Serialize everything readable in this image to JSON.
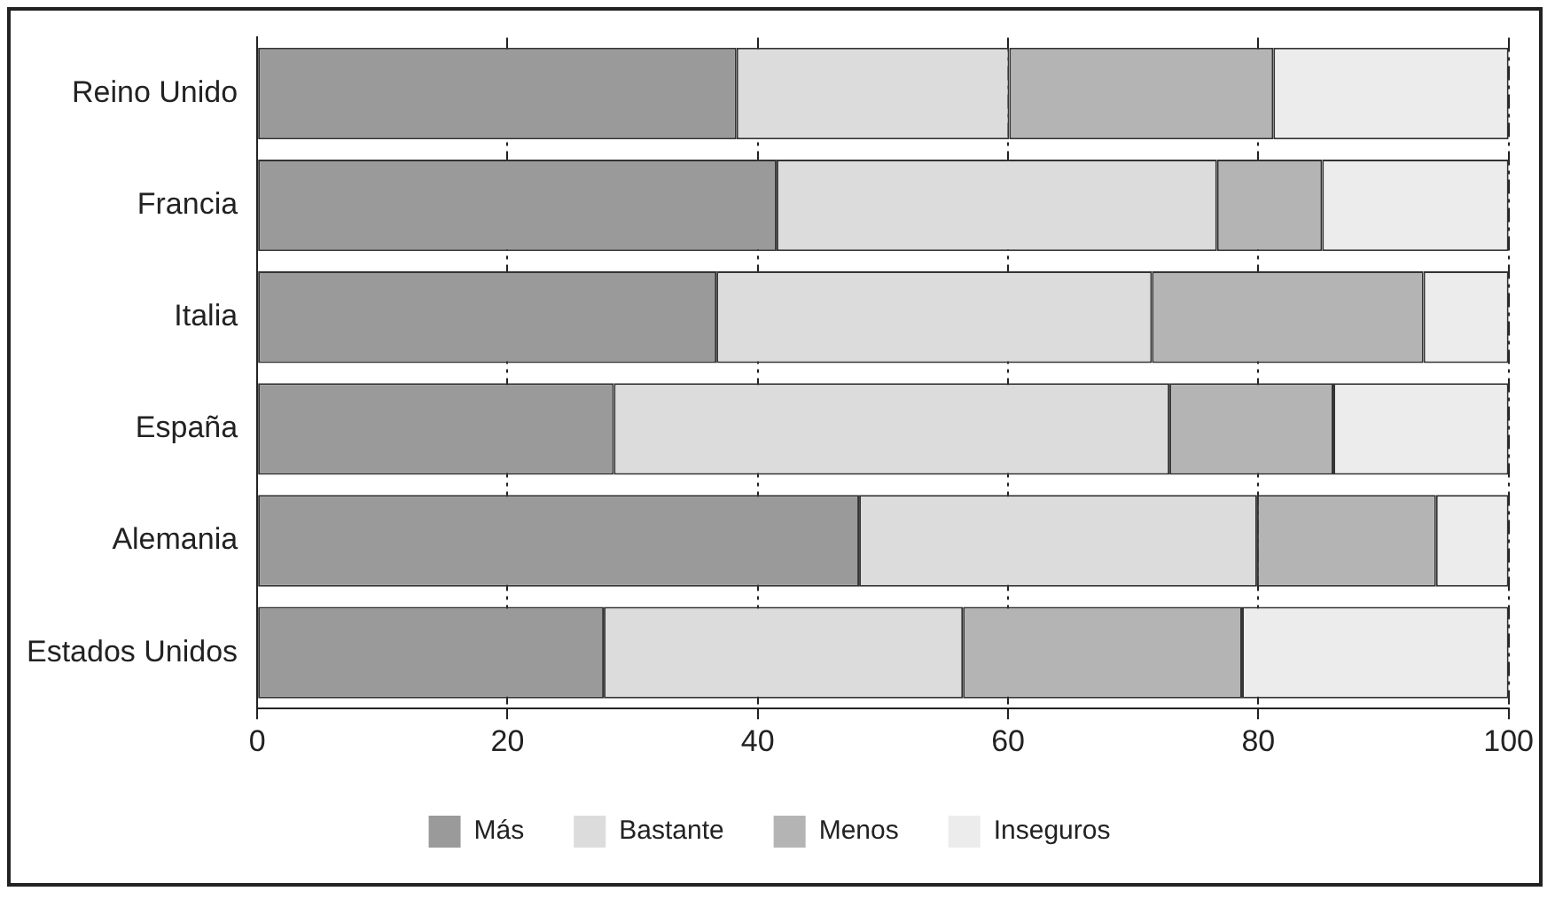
{
  "chart_data": {
    "type": "bar",
    "orientation": "horizontal",
    "stacked": true,
    "categories": [
      "Reino Unido",
      "Francia",
      "Italia",
      "España",
      "Alemania",
      "Estados Unidos"
    ],
    "series": [
      {
        "name": "Más",
        "color": "#9a9a9a",
        "values": [
          38.3,
          41.5,
          36.7,
          28.5,
          48.1,
          27.7
        ]
      },
      {
        "name": "Bastante",
        "color": "#dcdcdc",
        "values": [
          21.8,
          35.2,
          34.8,
          44.4,
          31.8,
          28.7
        ]
      },
      {
        "name": "Menos",
        "color": "#b4b4b4",
        "values": [
          21.1,
          8.4,
          21.7,
          13.1,
          14.3,
          22.3
        ]
      },
      {
        "name": "Inseguros",
        "color": "#ececec",
        "values": [
          18.8,
          14.9,
          6.8,
          14.0,
          5.8,
          21.3
        ]
      }
    ],
    "xlim": [
      0,
      100
    ],
    "xticks": [
      0,
      20,
      40,
      60,
      80,
      100
    ],
    "grid": "x",
    "legend": "bottom"
  }
}
